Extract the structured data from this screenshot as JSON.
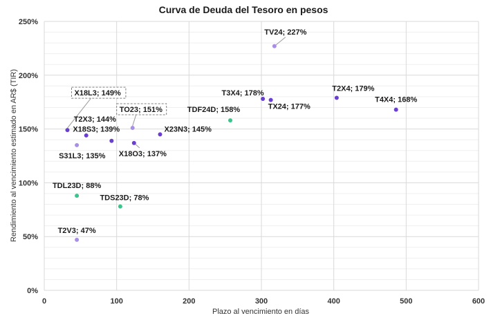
{
  "chart_data": {
    "type": "scatter",
    "title": "Curva de Deuda del Tesoro en pesos",
    "xlabel": "Plazo al vencimiento en días",
    "ylabel": "Rendimiento al vencimiento estimado en AR$ (TIR)",
    "xlim": [
      0,
      600
    ],
    "ylim": [
      0,
      250
    ],
    "x_ticks": [
      "0",
      "100",
      "200",
      "300",
      "400",
      "500",
      "600"
    ],
    "y_ticks": [
      "0%",
      "50%",
      "100%",
      "150%",
      "200%",
      "250%"
    ],
    "grid": true,
    "legend": "none",
    "colors": {
      "purple": "#6a3fd0",
      "lavender": "#a98ee6",
      "green": "#3cc48c"
    },
    "points": [
      {
        "label": "X18L3; 149%",
        "x": 32,
        "y": 149,
        "color": "purple",
        "boxed": true
      },
      {
        "label": "T2X3; 144%",
        "x": 58,
        "y": 144,
        "color": "purple"
      },
      {
        "label": "S31L3; 135%",
        "x": 45,
        "y": 135,
        "color": "lavender"
      },
      {
        "label": "X18S3; 139%",
        "x": 93,
        "y": 139,
        "color": "purple"
      },
      {
        "label": "TO23; 151%",
        "x": 122,
        "y": 151,
        "color": "lavender",
        "boxed": true
      },
      {
        "label": "X18O3; 137%",
        "x": 124,
        "y": 137,
        "color": "purple"
      },
      {
        "label": "X23N3; 145%",
        "x": 160,
        "y": 145,
        "color": "purple"
      },
      {
        "label": "TDF24D; 158%",
        "x": 257,
        "y": 158,
        "color": "green"
      },
      {
        "label": "T3X4; 178%",
        "x": 302,
        "y": 178,
        "color": "purple"
      },
      {
        "label": "TX24; 177%",
        "x": 313,
        "y": 177,
        "color": "purple"
      },
      {
        "label": "TV24; 227%",
        "x": 318,
        "y": 227,
        "color": "lavender"
      },
      {
        "label": "T2X4; 179%",
        "x": 404,
        "y": 179,
        "color": "purple"
      },
      {
        "label": "T4X4; 168%",
        "x": 486,
        "y": 168,
        "color": "purple"
      },
      {
        "label": "TDL23D; 88%",
        "x": 45,
        "y": 88,
        "color": "green"
      },
      {
        "label": "TDS23D; 78%",
        "x": 105,
        "y": 78,
        "color": "green"
      },
      {
        "label": "T2V3; 47%",
        "x": 45,
        "y": 47,
        "color": "lavender"
      }
    ]
  }
}
